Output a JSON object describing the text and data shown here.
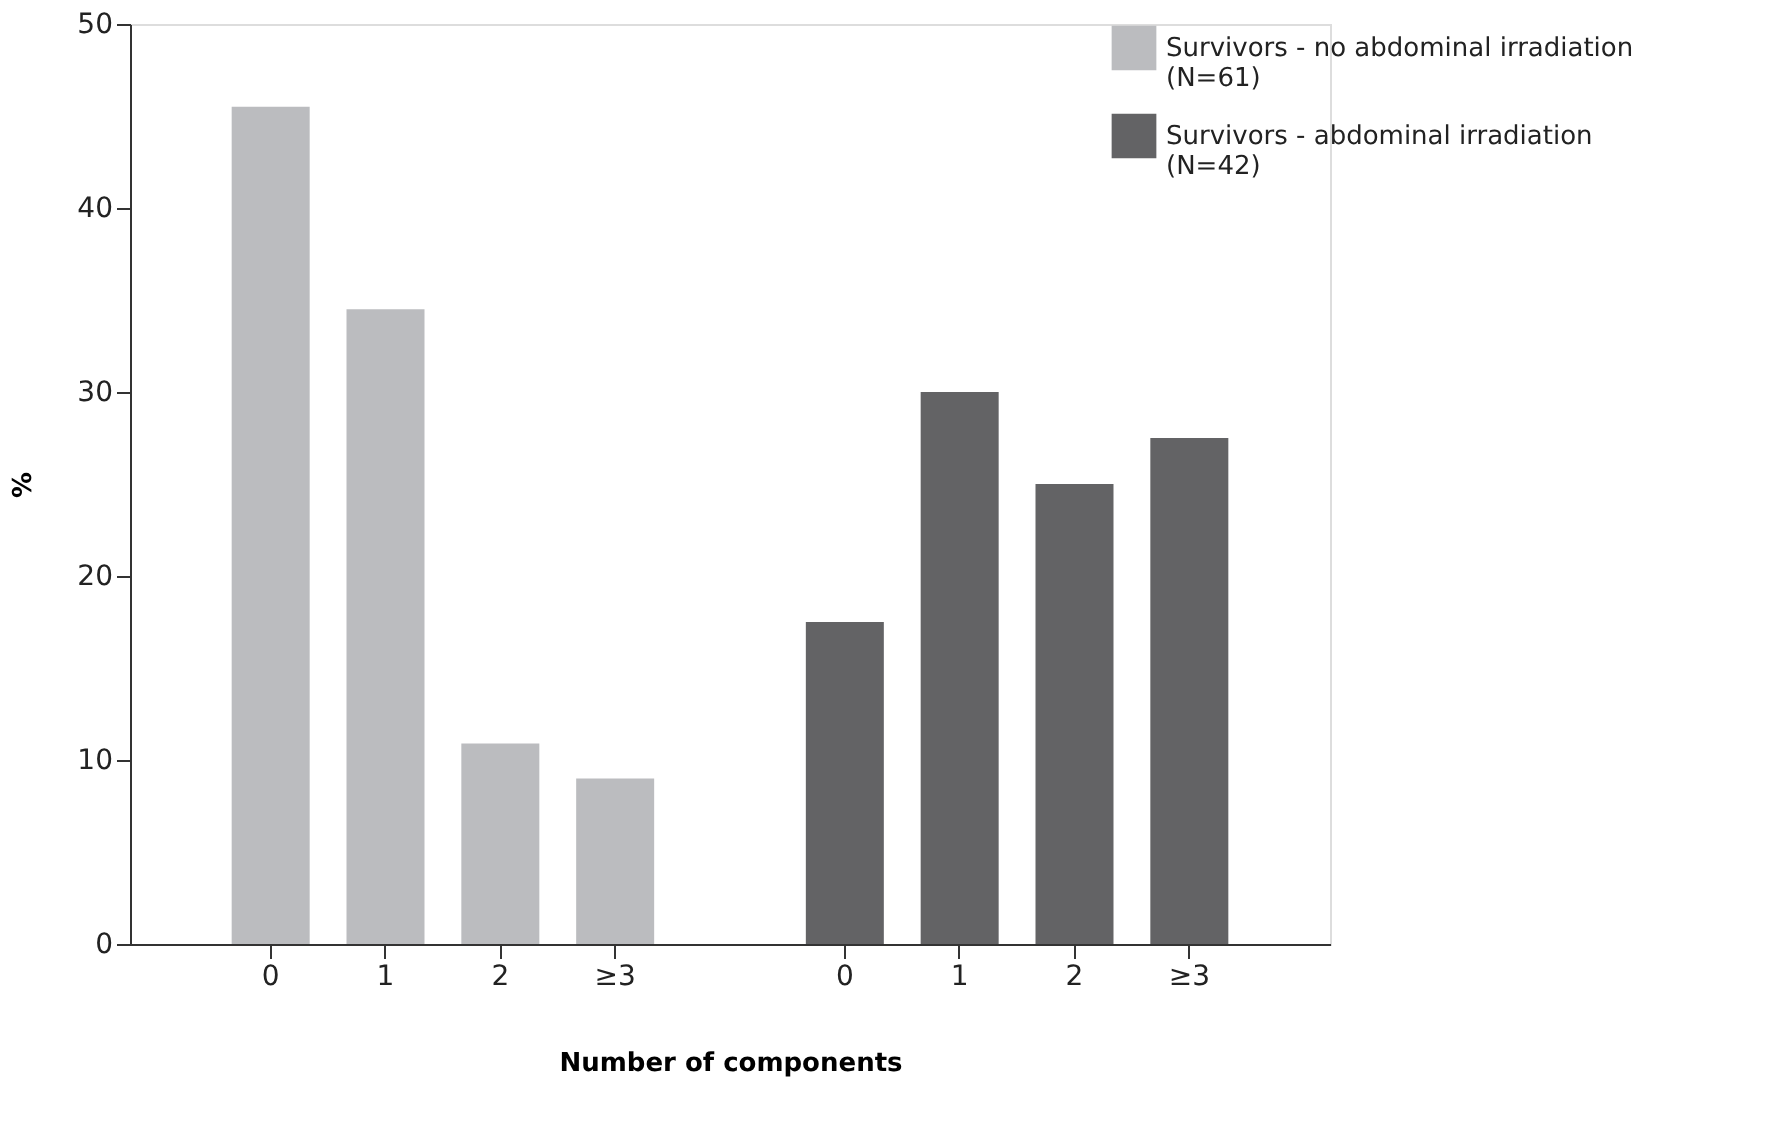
{
  "chart_data": {
    "type": "bar",
    "xlabel": "Number of components",
    "ylabel": "%",
    "categories": [
      "0",
      "1",
      "2",
      "≥3",
      null,
      "0",
      "1",
      "2",
      "≥3"
    ],
    "series": [
      {
        "name": "Survivors - no abdominal irradiation\n(N=61)",
        "color": "#bbbcbf",
        "values": [
          45.5,
          34.5,
          10.9,
          9.0,
          null,
          null,
          null,
          null,
          null
        ]
      },
      {
        "name": "Survivors - abdominal irradiation\n(N=42)",
        "color": "#636365",
        "values": [
          null,
          null,
          null,
          null,
          null,
          17.5,
          30.0,
          25.0,
          27.5
        ]
      }
    ],
    "ylim": [
      0,
      50
    ],
    "yticks": [
      0,
      10,
      20,
      30,
      40,
      50
    ],
    "grid": false,
    "legend": "top right"
  }
}
